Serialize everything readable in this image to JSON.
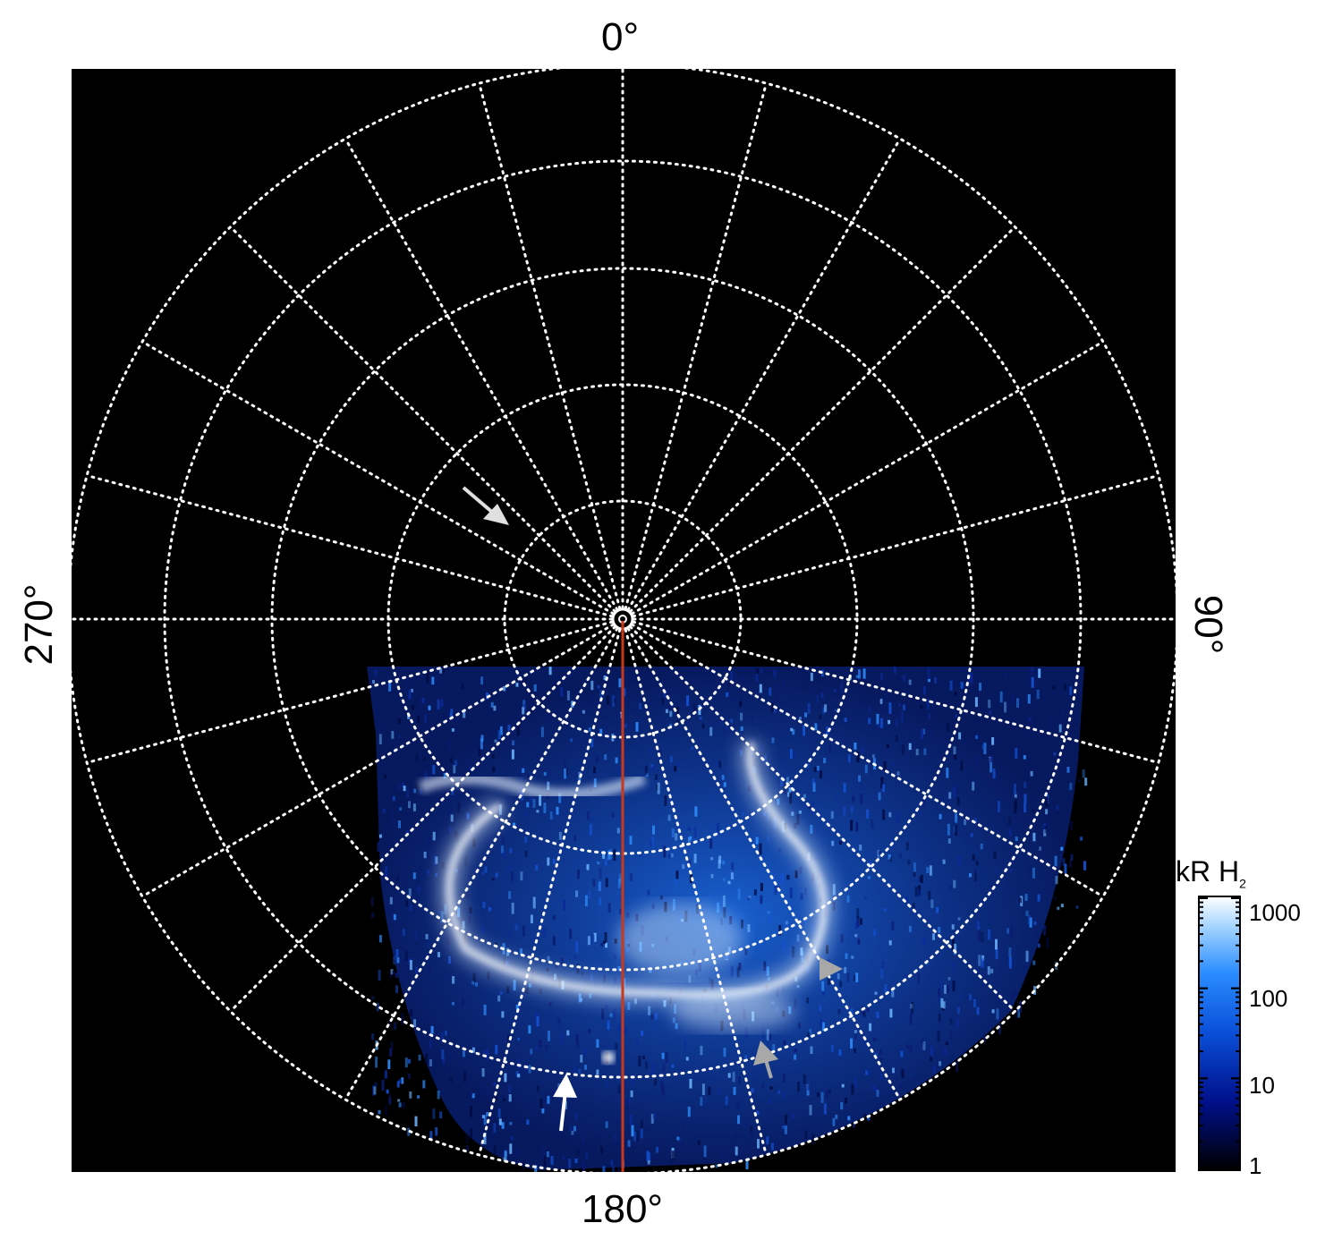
{
  "image": {
    "description_tags": [
      "polar-projection",
      "aurora",
      "ultraviolet-emission",
      "dotted-grid"
    ],
    "colors": {
      "background": "#000000",
      "grid": "#ffffff",
      "meridian_line": "#c8391c",
      "aurora_bright": "#e8f4ff",
      "aurora_mid": "#2f8fff",
      "aurora_dim": "#0a2a9a",
      "arrow_white": "#ffffff",
      "arrow_gray": "#a8a8a8"
    }
  },
  "labels": {
    "top": "0°",
    "right": "90°",
    "bottom": "180°",
    "left": "270°"
  },
  "colorbar": {
    "unit": "kR H",
    "unit_subscript": "2",
    "ticks": [
      "1000",
      "100",
      "10",
      "1"
    ],
    "scale": "log",
    "range": [
      1,
      1000
    ]
  },
  "annotations": [
    {
      "name": "upper-left-arrow",
      "color": "white"
    },
    {
      "name": "lower-left-arrow",
      "color": "white"
    },
    {
      "name": "right-arrow",
      "color": "gray"
    },
    {
      "name": "lower-right-arrow",
      "color": "gray"
    }
  ]
}
